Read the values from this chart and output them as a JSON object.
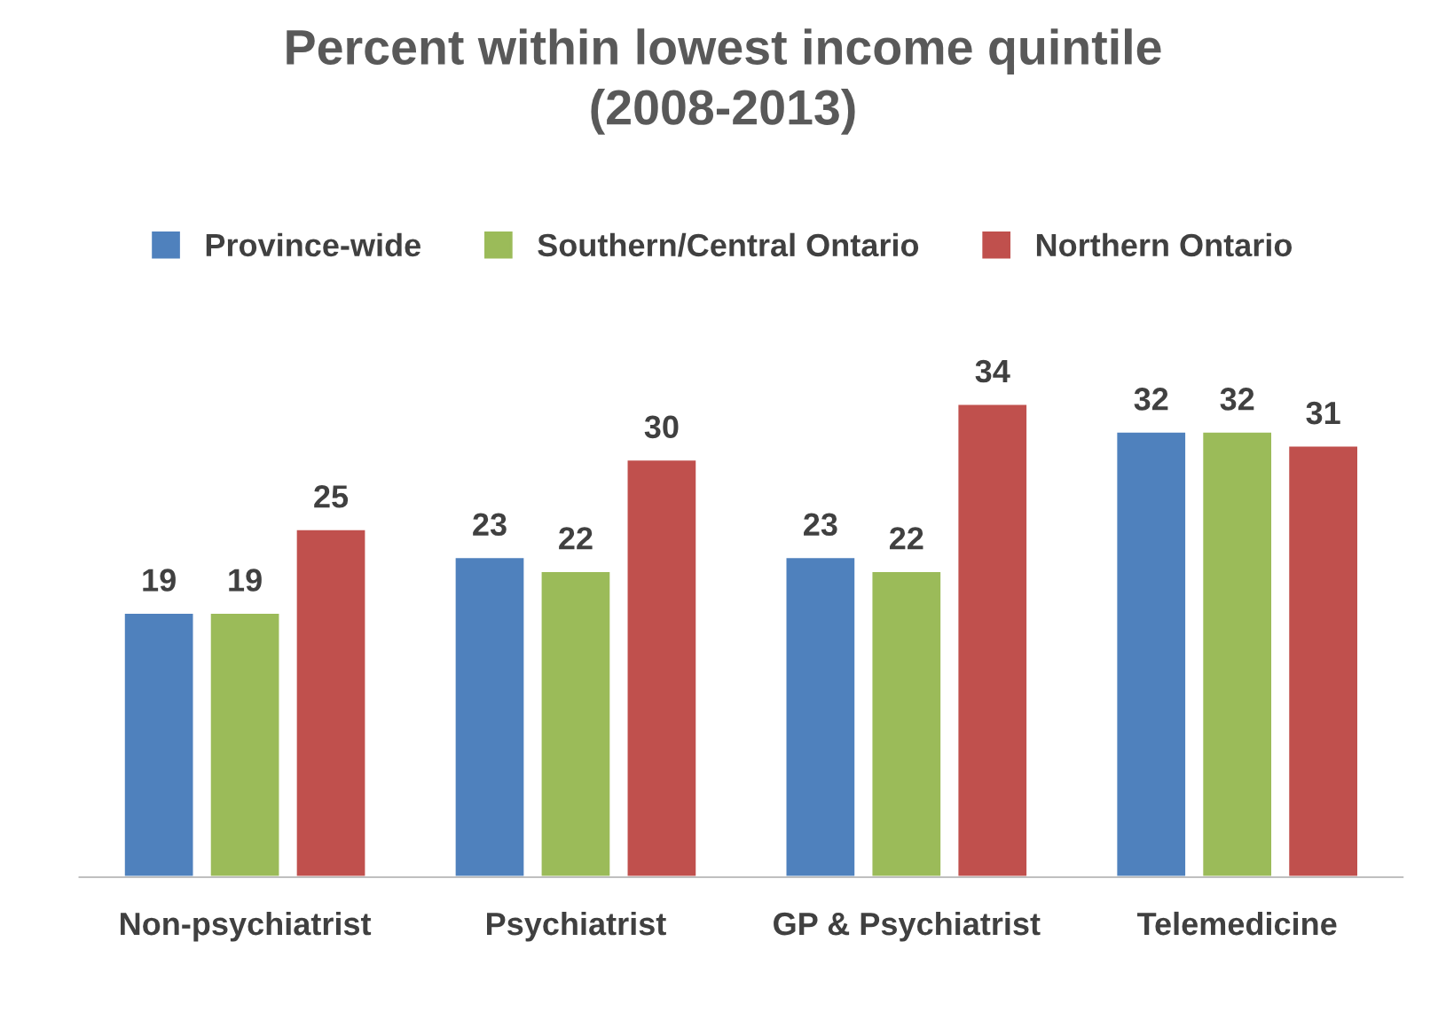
{
  "chart_data": {
    "type": "bar",
    "title": "Percent within lowest income quintile\n(2008-2013)",
    "categories": [
      "Non-psychiatrist",
      "Psychiatrist",
      "GP & Psychiatrist",
      "Telemedicine"
    ],
    "series": [
      {
        "name": "Province-wide",
        "color": "#4f81bd",
        "values": [
          19,
          23,
          23,
          32
        ]
      },
      {
        "name": "Southern/Central Ontario",
        "color": "#9bbb59",
        "values": [
          19,
          22,
          22,
          32
        ]
      },
      {
        "name": "Northern Ontario",
        "color": "#c0504d",
        "values": [
          25,
          30,
          34,
          31
        ]
      }
    ],
    "data_labels": true,
    "legend": "top",
    "grid": false,
    "tick_labels": "x"
  }
}
